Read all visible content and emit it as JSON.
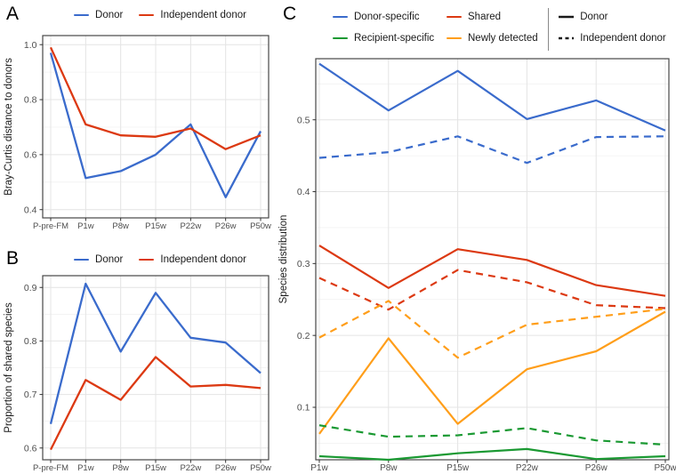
{
  "panels": {
    "a": "A",
    "b": "B",
    "c": "C"
  },
  "colors": {
    "blue": "#3A6BCC",
    "red": "#DC3912",
    "green": "#1A9932",
    "orange": "#FF9E1A",
    "line_black": "#1A1A1A",
    "axis_text": "#4D4D4D",
    "axis_title": "#1A1A1A",
    "panel_border": "#474747",
    "tick_mark": "#333333",
    "grid_major": "#E4E4E4",
    "grid_minor": "#F1F1F1",
    "legend_divider": "#8A8A8A"
  },
  "chart_data": [
    {
      "id": "A",
      "type": "line",
      "title": "",
      "xlabel": "",
      "ylabel": "Bray-Curtis distance to donors",
      "grid": true,
      "legend_position": "top",
      "categories": [
        "P-pre-FM",
        "P1w",
        "P8w",
        "P15w",
        "P22w",
        "P26w",
        "P50w"
      ],
      "y_ticks": [
        "0.4",
        "0.6",
        "0.8",
        "1.0"
      ],
      "ylim": [
        0.37,
        1.033
      ],
      "series": [
        {
          "name": "Donor",
          "color_key": "blue",
          "dash": "solid",
          "values": [
            0.97,
            0.515,
            0.54,
            0.6,
            0.71,
            0.445,
            0.685
          ]
        },
        {
          "name": "Independent donor",
          "color_key": "red",
          "dash": "solid",
          "values": [
            0.99,
            0.71,
            0.67,
            0.665,
            0.695,
            0.62,
            0.67
          ]
        }
      ]
    },
    {
      "id": "B",
      "type": "line",
      "title": "",
      "xlabel": "",
      "ylabel": "Proportion of shared species",
      "grid": true,
      "legend_position": "top",
      "categories": [
        "P-pre-FM",
        "P1w",
        "P8w",
        "P15w",
        "P22w",
        "P26w",
        "P50w"
      ],
      "y_ticks": [
        "0.6",
        "0.7",
        "0.8",
        "0.9"
      ],
      "ylim": [
        0.578,
        0.922
      ],
      "series": [
        {
          "name": "Donor",
          "color_key": "blue",
          "dash": "solid",
          "values": [
            0.645,
            0.907,
            0.78,
            0.89,
            0.806,
            0.797,
            0.74
          ]
        },
        {
          "name": "Independent donor",
          "color_key": "red",
          "dash": "solid",
          "values": [
            0.597,
            0.727,
            0.69,
            0.77,
            0.715,
            0.718,
            0.712
          ]
        }
      ]
    },
    {
      "id": "C",
      "type": "line",
      "title": "",
      "xlabel": "",
      "ylabel": "Species distribution",
      "grid": true,
      "legend_position": "top",
      "categories": [
        "P1w",
        "P8w",
        "P15w",
        "P22w",
        "P26w",
        "P50w"
      ],
      "y_ticks": [
        "0.1",
        "0.2",
        "0.3",
        "0.4",
        "0.5"
      ],
      "ylim": [
        0.027,
        0.585
      ],
      "color_legend": [
        {
          "label": "Donor-specific",
          "color_key": "blue"
        },
        {
          "label": "Shared",
          "color_key": "red"
        },
        {
          "label": "Recipient-specific",
          "color_key": "green"
        },
        {
          "label": "Newly detected",
          "color_key": "orange"
        }
      ],
      "linetype_legend": [
        {
          "label": "Donor",
          "dash": "solid"
        },
        {
          "label": "Independent donor",
          "dash": "dashed"
        }
      ],
      "series": [
        {
          "name": "Donor-specific",
          "linetype": "Donor",
          "color_key": "blue",
          "dash": "solid",
          "values": [
            0.578,
            0.513,
            0.568,
            0.501,
            0.527,
            0.485
          ]
        },
        {
          "name": "Donor-specific",
          "linetype": "Independent donor",
          "color_key": "blue",
          "dash": "dashed",
          "values": [
            0.447,
            0.455,
            0.477,
            0.44,
            0.476,
            0.477
          ]
        },
        {
          "name": "Shared",
          "linetype": "Donor",
          "color_key": "red",
          "dash": "solid",
          "values": [
            0.325,
            0.266,
            0.32,
            0.305,
            0.27,
            0.255
          ]
        },
        {
          "name": "Shared",
          "linetype": "Independent donor",
          "color_key": "red",
          "dash": "dashed",
          "values": [
            0.28,
            0.236,
            0.291,
            0.274,
            0.242,
            0.238
          ]
        },
        {
          "name": "Newly detected",
          "linetype": "Donor",
          "color_key": "orange",
          "dash": "solid",
          "values": [
            0.063,
            0.196,
            0.077,
            0.153,
            0.178,
            0.233
          ]
        },
        {
          "name": "Newly detected",
          "linetype": "Independent donor",
          "color_key": "orange",
          "dash": "dashed",
          "values": [
            0.197,
            0.248,
            0.169,
            0.215,
            0.226,
            0.237
          ]
        },
        {
          "name": "Recipient-specific",
          "linetype": "Independent donor",
          "color_key": "green",
          "dash": "dashed",
          "values": [
            0.075,
            0.059,
            0.061,
            0.071,
            0.054,
            0.048
          ]
        },
        {
          "name": "Recipient-specific",
          "linetype": "Donor",
          "color_key": "green",
          "dash": "solid",
          "values": [
            0.032,
            0.027,
            0.036,
            0.042,
            0.028,
            0.032
          ]
        }
      ]
    }
  ]
}
